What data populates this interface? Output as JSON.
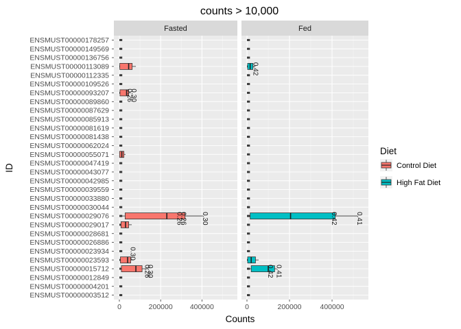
{
  "chart_data": {
    "type": "boxplot-horizontal-faceted",
    "title": "counts > 10,000",
    "xlabel": "Counts",
    "ylabel": "ID",
    "xlim": [
      0,
      545000
    ],
    "x_ticks": [
      0,
      200000,
      400000
    ],
    "x_tick_labels": [
      "0",
      "200000",
      "400000"
    ],
    "grid": true,
    "legend_position": "right",
    "legend_title": "Diet",
    "facets": [
      "Fasted",
      "Fed"
    ],
    "y_tick_labels": [
      "ENSMUST00000178257",
      "ENSMUST00000149569",
      "ENSMUST00000136756",
      "ENSMUST00000113089",
      "ENSMUST00000112335",
      "ENSMUST00000109526",
      "ENSMUST00000093207",
      "ENSMUST00000089860",
      "ENSMUST00000087629",
      "ENSMUST00000085913",
      "ENSMUST00000081619",
      "ENSMUST00000081438",
      "ENSMUST00000062024",
      "ENSMUST00000055071",
      "ENSMUST00000047419",
      "ENSMUST00000043077",
      "ENSMUST00000042985",
      "ENSMUST00000039559",
      "ENSMUST00000033880",
      "ENSMUST00000030044",
      "ENSMUST00000029076",
      "ENSMUST00000029017",
      "ENSMUST00000028681",
      "ENSMUST00000026886",
      "ENSMUST00000023934",
      "ENSMUST00000023593",
      "ENSMUST00000015712",
      "ENSMUST00000012849",
      "ENSMUST00000004201",
      "ENSMUST00000003512"
    ],
    "series": [
      {
        "name": "Control Diet",
        "color": "#F8766D"
      },
      {
        "name": "High Fat Diet",
        "color": "#00BFC4"
      }
    ],
    "boxes": [
      {
        "facet": "Fasted",
        "series": "Control Diet",
        "id": "ENSMUST00000113089",
        "q1": 2000,
        "median": 45000,
        "q3": 62000,
        "max": 80000
      },
      {
        "facet": "Fasted",
        "series": "Control Diet",
        "id": "ENSMUST00000093207",
        "q1": 3000,
        "median": 35000,
        "q3": 45000,
        "max": 55000
      },
      {
        "facet": "Fasted",
        "series": "Control Diet",
        "id": "ENSMUST00000055071",
        "q1": 1000,
        "median": 12000,
        "q3": 22000,
        "max": 30000
      },
      {
        "facet": "Fasted",
        "series": "Control Diet",
        "id": "ENSMUST00000029076",
        "q1": 28000,
        "median": 230000,
        "q3": 318000,
        "max": 405000
      },
      {
        "facet": "Fasted",
        "series": "Control Diet",
        "id": "ENSMUST00000029017",
        "q1": 8000,
        "median": 30000,
        "q3": 45000,
        "max": 60000
      },
      {
        "facet": "Fasted",
        "series": "Control Diet",
        "id": "ENSMUST00000023593",
        "q1": 5000,
        "median": 40000,
        "q3": 55000,
        "max": 70000
      },
      {
        "facet": "Fasted",
        "series": "Control Diet",
        "id": "ENSMUST00000015712",
        "q1": 10000,
        "median": 80000,
        "q3": 110000,
        "max": 140000
      },
      {
        "facet": "Fed",
        "series": "High Fat Diet",
        "id": "ENSMUST00000113089",
        "q1": 3000,
        "median": 15000,
        "q3": 28000,
        "max": 40000
      },
      {
        "facet": "Fed",
        "series": "High Fat Diet",
        "id": "ENSMUST00000029076",
        "q1": 15000,
        "median": 205000,
        "q3": 415000,
        "max": 520000
      },
      {
        "facet": "Fed",
        "series": "High Fat Diet",
        "id": "ENSMUST00000023593",
        "q1": 3000,
        "median": 20000,
        "q3": 40000,
        "max": 55000
      },
      {
        "facet": "Fed",
        "series": "High Fat Diet",
        "id": "ENSMUST00000015712",
        "q1": 20000,
        "median": 100000,
        "q3": 130000,
        "max": 140000
      }
    ],
    "point_labels": [
      {
        "facet": "Fasted",
        "id": "ENSMUST00000093207",
        "x": 60000,
        "text": "0.30"
      },
      {
        "facet": "Fasted",
        "id": "ENSMUST00000093207",
        "x": 40000,
        "text": "0.26"
      },
      {
        "facet": "Fasted",
        "id": "ENSMUST00000029076",
        "x": 405000,
        "text": "0.30"
      },
      {
        "facet": "Fasted",
        "id": "ENSMUST00000029076",
        "x": 300000,
        "text": "0.26"
      },
      {
        "facet": "Fasted",
        "id": "ENSMUST00000029076",
        "x": 280000,
        "text": "0.26"
      },
      {
        "facet": "Fasted",
        "id": "ENSMUST00000023934",
        "x": 55000,
        "text": "0.30"
      },
      {
        "facet": "Fasted",
        "id": "ENSMUST00000015712",
        "x": 140000,
        "text": "0.30"
      },
      {
        "facet": "Fasted",
        "id": "ENSMUST00000015712",
        "x": 125000,
        "text": "0.26"
      },
      {
        "facet": "Fed",
        "id": "ENSMUST00000029076",
        "x": 520000,
        "text": "0.41"
      },
      {
        "facet": "Fed",
        "id": "ENSMUST00000029076",
        "x": 400000,
        "text": "0.42"
      },
      {
        "facet": "Fed",
        "id": "ENSMUST00000015712",
        "x": 140000,
        "text": "0.41"
      },
      {
        "facet": "Fed",
        "id": "ENSMUST00000015712",
        "x": 100000,
        "text": "0.42"
      },
      {
        "facet": "Fed",
        "id": "ENSMUST00000113089",
        "x": 30000,
        "text": "0.42"
      }
    ]
  }
}
